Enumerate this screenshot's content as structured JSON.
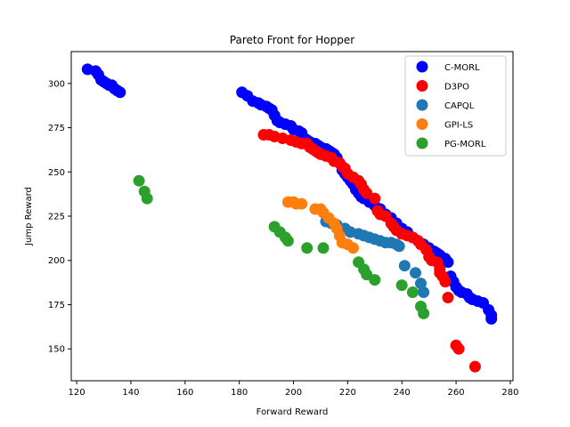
{
  "chart_data": {
    "type": "scatter",
    "title": "Pareto Front for Hopper",
    "xlabel": "Forward Reward",
    "ylabel": "Jump Reward",
    "xlim": [
      118,
      281
    ],
    "ylim": [
      132,
      318
    ],
    "xticks": [
      120,
      140,
      160,
      180,
      200,
      220,
      240,
      260,
      280
    ],
    "yticks": [
      150,
      175,
      200,
      225,
      250,
      275,
      300
    ],
    "grid": false,
    "legend_position": "top-right",
    "series": [
      {
        "name": "C-MORL",
        "color": "#0000ff",
        "points": [
          [
            124,
            308
          ],
          [
            127,
            307
          ],
          [
            128,
            305
          ],
          [
            129,
            302
          ],
          [
            130,
            301
          ],
          [
            131,
            300
          ],
          [
            132,
            299
          ],
          [
            133,
            299
          ],
          [
            134,
            297
          ],
          [
            135,
            296
          ],
          [
            136,
            295
          ],
          [
            181,
            295
          ],
          [
            183,
            293
          ],
          [
            185,
            290
          ],
          [
            187,
            289
          ],
          [
            188,
            288
          ],
          [
            190,
            287
          ],
          [
            191,
            286
          ],
          [
            192,
            285
          ],
          [
            193,
            282
          ],
          [
            194,
            279
          ],
          [
            195,
            278
          ],
          [
            197,
            277
          ],
          [
            199,
            276
          ],
          [
            200,
            274
          ],
          [
            202,
            273
          ],
          [
            203,
            272
          ],
          [
            204,
            269
          ],
          [
            205,
            268
          ],
          [
            206,
            267
          ],
          [
            208,
            266
          ],
          [
            209,
            265
          ],
          [
            210,
            264
          ],
          [
            212,
            263
          ],
          [
            213,
            262
          ],
          [
            214,
            261
          ],
          [
            215,
            260
          ],
          [
            216,
            258
          ],
          [
            217,
            255
          ],
          [
            218,
            251
          ],
          [
            219,
            249
          ],
          [
            220,
            247
          ],
          [
            221,
            245
          ],
          [
            222,
            243
          ],
          [
            223,
            240
          ],
          [
            224,
            238
          ],
          [
            225,
            236
          ],
          [
            226,
            235
          ],
          [
            228,
            233
          ],
          [
            230,
            231
          ],
          [
            232,
            229
          ],
          [
            234,
            226
          ],
          [
            236,
            224
          ],
          [
            238,
            221
          ],
          [
            240,
            218
          ],
          [
            242,
            216
          ],
          [
            244,
            213
          ],
          [
            246,
            211
          ],
          [
            248,
            209
          ],
          [
            250,
            207
          ],
          [
            252,
            205
          ],
          [
            253,
            204
          ],
          [
            254,
            203
          ],
          [
            256,
            201
          ],
          [
            257,
            199
          ],
          [
            258,
            191
          ],
          [
            259,
            188
          ],
          [
            260,
            185
          ],
          [
            261,
            183
          ],
          [
            262,
            182
          ],
          [
            264,
            181
          ],
          [
            265,
            179
          ],
          [
            266,
            178
          ],
          [
            268,
            177
          ],
          [
            270,
            176
          ],
          [
            272,
            172
          ],
          [
            273,
            169
          ],
          [
            273,
            167
          ]
        ]
      },
      {
        "name": "D3PO",
        "color": "#ff0000",
        "points": [
          [
            189,
            271
          ],
          [
            191,
            271
          ],
          [
            193,
            270
          ],
          [
            196,
            269
          ],
          [
            199,
            268
          ],
          [
            201,
            267
          ],
          [
            203,
            266
          ],
          [
            205,
            266
          ],
          [
            206,
            264
          ],
          [
            207,
            263
          ],
          [
            208,
            262
          ],
          [
            209,
            261
          ],
          [
            210,
            260
          ],
          [
            212,
            259
          ],
          [
            214,
            258
          ],
          [
            215,
            256
          ],
          [
            217,
            255
          ],
          [
            218,
            253
          ],
          [
            219,
            252
          ],
          [
            220,
            249
          ],
          [
            222,
            247
          ],
          [
            224,
            245
          ],
          [
            225,
            243
          ],
          [
            226,
            240
          ],
          [
            227,
            238
          ],
          [
            230,
            235
          ],
          [
            231,
            228
          ],
          [
            232,
            226
          ],
          [
            234,
            225
          ],
          [
            236,
            221
          ],
          [
            237,
            219
          ],
          [
            238,
            217
          ],
          [
            240,
            215
          ],
          [
            242,
            214
          ],
          [
            244,
            213
          ],
          [
            246,
            211
          ],
          [
            247,
            209
          ],
          [
            249,
            206
          ],
          [
            250,
            202
          ],
          [
            251,
            200
          ],
          [
            253,
            199
          ],
          [
            254,
            195
          ],
          [
            254,
            193
          ],
          [
            255,
            191
          ],
          [
            256,
            188
          ],
          [
            257,
            179
          ],
          [
            260,
            152
          ],
          [
            261,
            150
          ],
          [
            267,
            140
          ]
        ]
      },
      {
        "name": "CAPQL",
        "color": "#1f77b4",
        "points": [
          [
            212,
            222
          ],
          [
            214,
            221
          ],
          [
            216,
            220
          ],
          [
            219,
            218
          ],
          [
            221,
            216
          ],
          [
            224,
            215
          ],
          [
            226,
            214
          ],
          [
            228,
            213
          ],
          [
            230,
            212
          ],
          [
            232,
            211
          ],
          [
            234,
            210
          ],
          [
            236,
            210
          ],
          [
            238,
            209
          ],
          [
            239,
            208
          ],
          [
            241,
            197
          ],
          [
            245,
            193
          ],
          [
            247,
            187
          ],
          [
            248,
            182
          ]
        ]
      },
      {
        "name": "GPI-LS",
        "color": "#ff7f0e",
        "points": [
          [
            198,
            233
          ],
          [
            200,
            233
          ],
          [
            201,
            232
          ],
          [
            203,
            232
          ],
          [
            208,
            229
          ],
          [
            210,
            229
          ],
          [
            211,
            227
          ],
          [
            213,
            224
          ],
          [
            215,
            221
          ],
          [
            216,
            218
          ],
          [
            217,
            214
          ],
          [
            218,
            210
          ],
          [
            220,
            209
          ],
          [
            222,
            207
          ]
        ]
      },
      {
        "name": "PG-MORL",
        "color": "#2ca02c",
        "points": [
          [
            143,
            245
          ],
          [
            145,
            239
          ],
          [
            146,
            235
          ],
          [
            193,
            219
          ],
          [
            195,
            216
          ],
          [
            197,
            213
          ],
          [
            198,
            211
          ],
          [
            205,
            207
          ],
          [
            211,
            207
          ],
          [
            224,
            199
          ],
          [
            226,
            195
          ],
          [
            227,
            192
          ],
          [
            230,
            189
          ],
          [
            240,
            186
          ],
          [
            244,
            182
          ],
          [
            247,
            174
          ],
          [
            248,
            170
          ]
        ]
      }
    ]
  }
}
